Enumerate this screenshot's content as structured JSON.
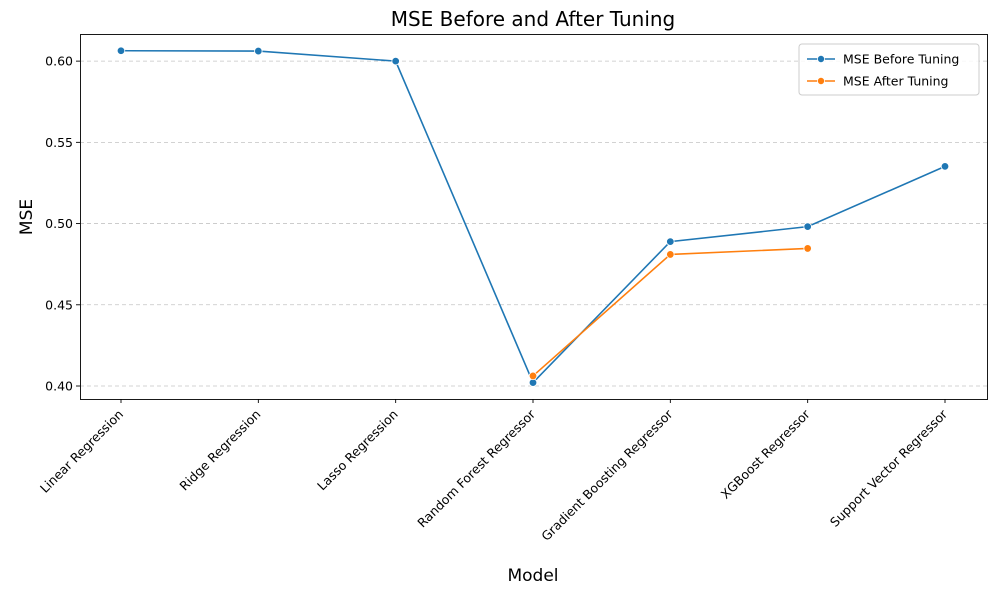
{
  "chart_data": {
    "type": "line",
    "title": "MSE Before and After Tuning",
    "xlabel": "Model",
    "ylabel": "MSE",
    "categories": [
      "Linear Regression",
      "Ridge Regression",
      "Lasso Regression",
      "Random Forest Regressor",
      "Gradient Boosting Regressor",
      "XGBoost Regressor",
      "Support Vector Regressor"
    ],
    "series": [
      {
        "name": "MSE Before Tuning",
        "color": "#1f77b4",
        "values": [
          0.6064,
          0.6062,
          0.6,
          0.4021,
          0.4889,
          0.4981,
          0.5352
        ]
      },
      {
        "name": "MSE After Tuning",
        "color": "#ff7f0e",
        "values": [
          null,
          null,
          null,
          0.4062,
          0.481,
          0.4847,
          null
        ]
      }
    ],
    "ylim": [
      0.392,
      0.6167
    ],
    "yticks": [
      "0.40",
      "0.45",
      "0.50",
      "0.55",
      "0.60"
    ],
    "grid": "y-dashed",
    "legend_position": "top-right"
  }
}
